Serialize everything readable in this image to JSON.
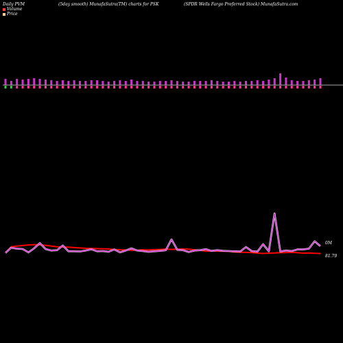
{
  "header": {
    "left": "Daily PVM",
    "middle": "(5day smooth) MunafaSutra(TM) charts for PSK",
    "right": "(SPDR Wells Fargo  Preferred Stock) MunafaSutra.com"
  },
  "legend": [
    {
      "label": "Volume",
      "color": "#ff3333"
    },
    {
      "label": "Price",
      "color": "#ffcc99"
    }
  ],
  "colors": {
    "volume_bar_up": "#cc33cc",
    "volume_bar_down_tick": "#33cc33",
    "volume_bar_up_tick": "#ff3399",
    "baseline": "#aaaaaa",
    "price_line": "#ff0000",
    "volume_line": "#cc33cc",
    "volume_line_edge": "#ffffff"
  },
  "chart_data": {
    "type": "line",
    "n_points": 56,
    "volume_bars": [
      9,
      6,
      9,
      8,
      9,
      10,
      9,
      8,
      7,
      6,
      7,
      6,
      7,
      6,
      6,
      7,
      7,
      6,
      5,
      6,
      7,
      6,
      8,
      6,
      6,
      5,
      5,
      6,
      6,
      7,
      6,
      5,
      5,
      6,
      6,
      6,
      7,
      6,
      5,
      5,
      6,
      5,
      6,
      6,
      7,
      6,
      8,
      10,
      17,
      11,
      7,
      6,
      6,
      7,
      8,
      10
    ],
    "bar_tick_color": [
      "down",
      "down",
      "up",
      "up",
      "up",
      "up",
      "up",
      "up",
      "up",
      "up",
      "up",
      "up",
      "up",
      "up",
      "up",
      "up",
      "up",
      "up",
      "up",
      "up",
      "up",
      "up",
      "up",
      "up",
      "up",
      "up",
      "up",
      "up",
      "up",
      "up",
      "up",
      "up",
      "up",
      "up",
      "up",
      "up",
      "up",
      "up",
      "up",
      "up",
      "up",
      "up",
      "up",
      "up",
      "up",
      "up",
      "up",
      "up",
      "up",
      "up",
      "up",
      "up",
      "up",
      "up",
      "up",
      "up"
    ],
    "price_series": [
      0.28,
      0.6,
      0.64,
      0.67,
      0.7,
      0.72,
      0.7,
      0.68,
      0.64,
      0.6,
      0.59,
      0.58,
      0.56,
      0.54,
      0.52,
      0.51,
      0.5,
      0.49,
      0.48,
      0.46,
      0.44,
      0.43,
      0.42,
      0.42,
      0.44,
      0.43,
      0.45,
      0.46,
      0.48,
      0.46,
      0.47,
      0.48,
      0.47,
      0.44,
      0.42,
      0.36,
      0.38,
      0.37,
      0.36,
      0.36,
      0.32,
      0.31,
      0.3,
      0.29,
      0.26,
      0.24,
      0.26,
      0.27,
      0.28,
      0.29,
      0.3,
      0.28,
      0.26,
      0.27,
      0.25,
      0.24
    ],
    "volume_series": [
      0.27,
      0.55,
      0.5,
      0.48,
      0.3,
      0.52,
      0.8,
      0.48,
      0.4,
      0.42,
      0.67,
      0.36,
      0.36,
      0.35,
      0.4,
      0.47,
      0.36,
      0.37,
      0.33,
      0.46,
      0.3,
      0.4,
      0.52,
      0.4,
      0.37,
      0.33,
      0.36,
      0.38,
      0.42,
      1.0,
      0.44,
      0.42,
      0.32,
      0.4,
      0.42,
      0.47,
      0.38,
      0.42,
      0.38,
      0.37,
      0.36,
      0.35,
      0.59,
      0.37,
      0.34,
      0.74,
      0.36,
      2.4,
      0.35,
      0.4,
      0.37,
      0.46,
      0.46,
      0.5,
      0.9,
      0.64
    ],
    "right_labels": [
      {
        "text": "0M",
        "series": "volume"
      },
      {
        "text": "81.79",
        "series": "price"
      }
    ]
  }
}
